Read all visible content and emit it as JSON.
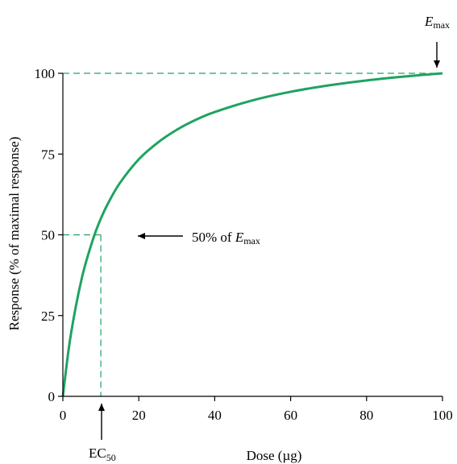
{
  "chart_data": {
    "type": "line",
    "title": "",
    "xlabel": "Dose (µg)",
    "ylabel": "Response (% of maximal response)",
    "xlim": [
      0,
      100
    ],
    "ylim": [
      0,
      100
    ],
    "xticks": [
      "0",
      "20",
      "40",
      "60",
      "80",
      "100"
    ],
    "yticks": [
      "0",
      "25",
      "50",
      "75",
      "100"
    ],
    "grid": false,
    "series": [
      {
        "color": "#1ea361",
        "x": [
          0,
          2,
          5,
          8,
          10,
          12,
          15,
          20,
          25,
          30,
          35,
          40,
          50,
          60,
          70,
          80,
          90,
          100
        ],
        "y": [
          0,
          16.7,
          33.3,
          44.4,
          50.0,
          54.5,
          60.0,
          66.7,
          71.4,
          75.0,
          77.8,
          80.0,
          83.3,
          85.7,
          87.5,
          88.9,
          90.0,
          90.9
        ]
      }
    ],
    "annotations": {
      "emax": {
        "italic": "E",
        "sub": "max",
        "x": 100,
        "y": 100
      },
      "half": {
        "text": "50% of ",
        "italic": "E",
        "sub": "max",
        "x": 10,
        "y": 50
      },
      "ec50": {
        "text": "EC",
        "sub": "50",
        "x": 10
      }
    }
  },
  "colors": {
    "curve": "#1ea361",
    "guide": "#1ea361",
    "axis": "#000000"
  }
}
